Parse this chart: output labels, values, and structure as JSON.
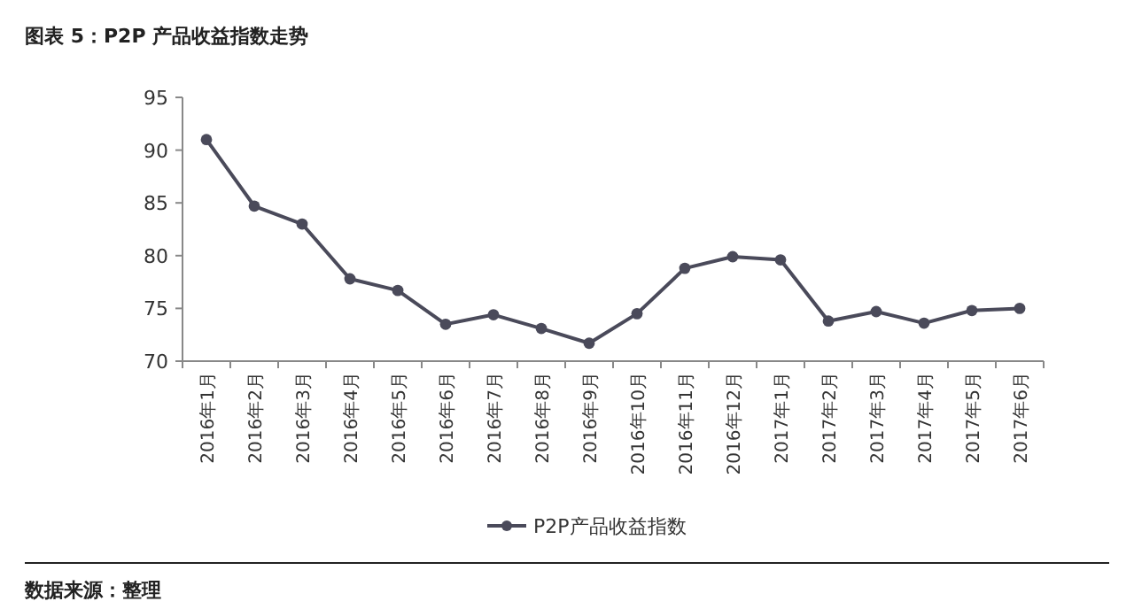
{
  "chart_data": {
    "type": "line",
    "title": "图表 5：P2P 产品收益指数走势",
    "categories": [
      "2016年1月",
      "2016年2月",
      "2016年3月",
      "2016年4月",
      "2016年5月",
      "2016年6月",
      "2016年7月",
      "2016年8月",
      "2016年9月",
      "2016年10月",
      "2016年11月",
      "2016年12月",
      "2017年1月",
      "2017年2月",
      "2017年3月",
      "2017年4月",
      "2017年5月",
      "2017年6月"
    ],
    "series": [
      {
        "name": "P2P产品收益指数",
        "color": "#4a4a5a",
        "values": [
          91.0,
          84.7,
          83.0,
          77.8,
          76.7,
          73.5,
          74.4,
          73.1,
          71.7,
          74.5,
          78.8,
          79.9,
          79.6,
          73.8,
          74.7,
          73.6,
          74.8,
          75.0
        ]
      }
    ],
    "ylim": [
      70,
      95
    ],
    "yticks": [
      70,
      75,
      80,
      85,
      90,
      95
    ],
    "marker": "circle",
    "legend": "bottom",
    "annotations": [
      "数据来源：整理"
    ]
  }
}
